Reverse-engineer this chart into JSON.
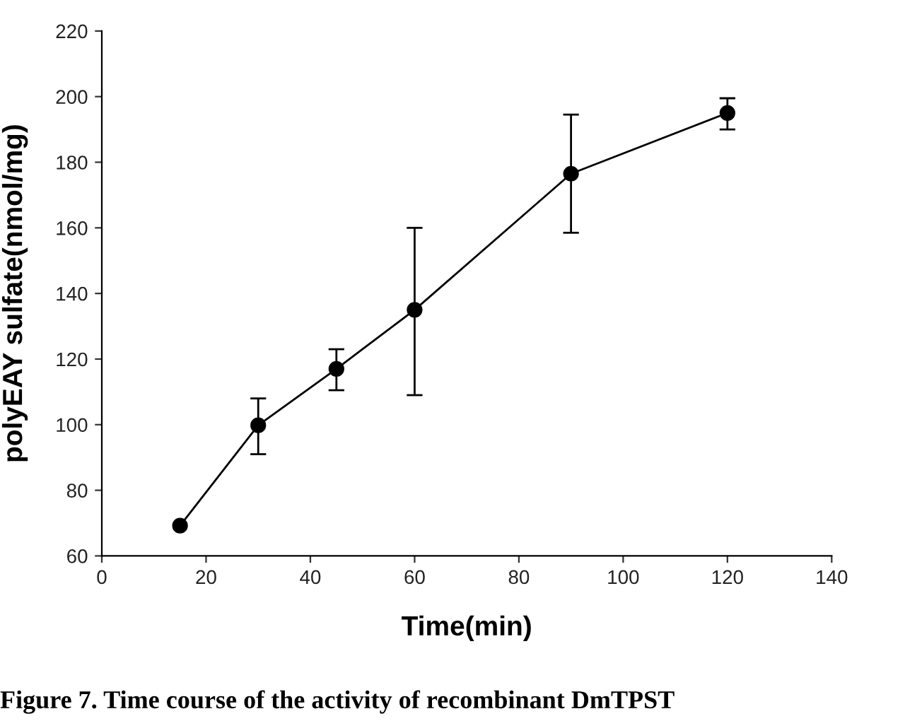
{
  "chart_data": {
    "type": "line",
    "xlabel": "Time(min)",
    "ylabel": "polyEAY sulfate(nmol/mg)",
    "x": [
      15,
      30,
      45,
      60,
      90,
      120
    ],
    "series": [
      {
        "color": "#000000",
        "values": [
          69.2,
          99.8,
          117,
          135,
          176.5,
          195
        ],
        "errors": [
          null,
          [
            91,
            108
          ],
          [
            110.5,
            123
          ],
          [
            109,
            160
          ],
          [
            158.5,
            194.5
          ],
          [
            190,
            199.5
          ]
        ]
      }
    ],
    "xlim": [
      0,
      140
    ],
    "xticks": [
      0,
      20,
      40,
      60,
      80,
      100,
      120,
      140
    ],
    "ylim": [
      60,
      220
    ],
    "yticks": [
      60,
      80,
      100,
      120,
      140,
      160,
      180,
      200,
      220
    ],
    "marker": "circle",
    "line_style": "solid",
    "grid": false,
    "legend": false,
    "annotations": [
      "Figure 7. Time course of the activity of recombinant DmTPST"
    ]
  }
}
